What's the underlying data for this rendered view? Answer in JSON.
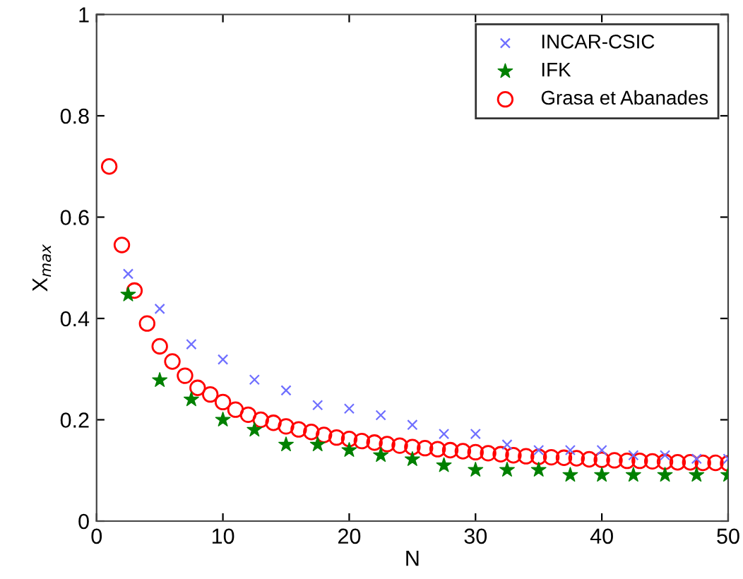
{
  "chart_data": {
    "type": "scatter",
    "xlabel": "N",
    "ylabel": "X$_{max}$",
    "xlim": [
      0,
      50
    ],
    "ylim": [
      0,
      1
    ],
    "xticks": [
      0,
      10,
      20,
      30,
      40,
      50
    ],
    "yticks": [
      0,
      0.2,
      0.4,
      0.6,
      0.8,
      1
    ],
    "grid": false,
    "legend": "top right",
    "series": [
      {
        "name": "INCAR-CSIC",
        "color": "#6f6fff",
        "marker": "cross",
        "x": [
          2.5,
          5,
          7.5,
          10,
          12.5,
          15,
          17.5,
          20,
          22.5,
          25,
          27.5,
          30,
          32.5,
          35,
          37.5,
          40,
          42.5,
          45,
          47.5,
          50
        ],
        "values": [
          0.488,
          0.419,
          0.349,
          0.319,
          0.279,
          0.258,
          0.229,
          0.222,
          0.209,
          0.19,
          0.172,
          0.172,
          0.151,
          0.14,
          0.14,
          0.14,
          0.13,
          0.13,
          0.123,
          0.123
        ]
      },
      {
        "name": "IFK",
        "color": "#008000",
        "marker": "star",
        "x": [
          2.5,
          5,
          7.5,
          10,
          12.5,
          15,
          17.5,
          20,
          22.5,
          25,
          27.5,
          30,
          32.5,
          35,
          37.5,
          40,
          42.5,
          45,
          47.5,
          50
        ],
        "values": [
          0.447,
          0.278,
          0.24,
          0.2,
          0.18,
          0.151,
          0.151,
          0.14,
          0.13,
          0.122,
          0.11,
          0.101,
          0.101,
          0.101,
          0.091,
          0.091,
          0.091,
          0.091,
          0.091,
          0.091
        ]
      },
      {
        "name": "Grasa et Abanades",
        "color": "#ff0000",
        "marker": "circle",
        "x": [
          1,
          2,
          3,
          4,
          5,
          6,
          7,
          8,
          9,
          10,
          11,
          12,
          13,
          14,
          15,
          16,
          17,
          18,
          19,
          20,
          21,
          22,
          23,
          24,
          25,
          26,
          27,
          28,
          29,
          30,
          31,
          32,
          33,
          34,
          35,
          36,
          37,
          38,
          39,
          40,
          41,
          42,
          43,
          44,
          45,
          46,
          47,
          48,
          49,
          50
        ],
        "values": [
          0.7,
          0.545,
          0.455,
          0.39,
          0.345,
          0.315,
          0.287,
          0.263,
          0.25,
          0.235,
          0.22,
          0.21,
          0.2,
          0.194,
          0.187,
          0.181,
          0.176,
          0.17,
          0.165,
          0.162,
          0.158,
          0.155,
          0.152,
          0.149,
          0.146,
          0.144,
          0.142,
          0.14,
          0.138,
          0.136,
          0.134,
          0.132,
          0.13,
          0.128,
          0.127,
          0.126,
          0.125,
          0.124,
          0.122,
          0.121,
          0.12,
          0.119,
          0.119,
          0.118,
          0.117,
          0.116,
          0.116,
          0.115,
          0.115,
          0.114
        ]
      }
    ]
  }
}
